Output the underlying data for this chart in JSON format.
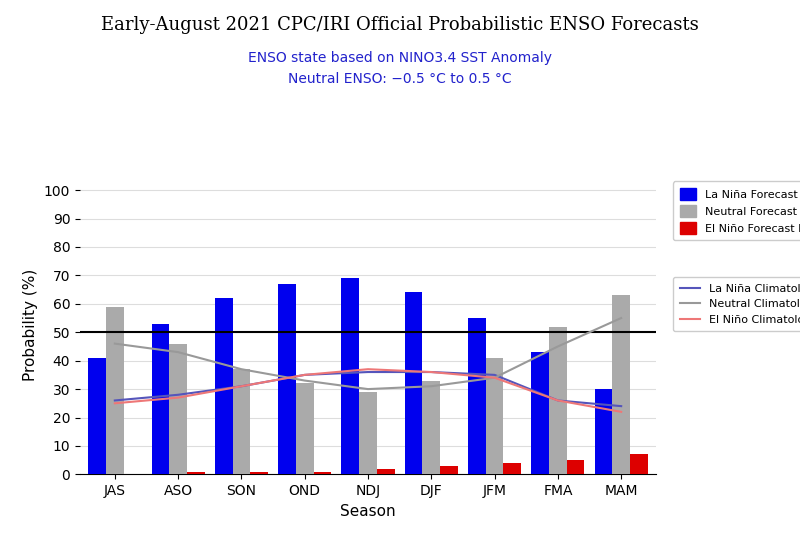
{
  "title": "Early-August 2021 CPC/IRI Official Probabilistic ENSO Forecasts",
  "subtitle1": "ENSO state based on NINO3.4 SST Anomaly",
  "subtitle2": "Neutral ENSO: −0.5 °C to 0.5 °C",
  "xlabel": "Season",
  "ylabel": "Probability (%)",
  "seasons": [
    "JAS",
    "ASO",
    "SON",
    "OND",
    "NDJ",
    "DJF",
    "JFM",
    "FMA",
    "MAM"
  ],
  "lanina_bars": [
    41,
    53,
    62,
    67,
    69,
    64,
    55,
    43,
    30
  ],
  "neutral_bars": [
    59,
    46,
    37,
    32,
    29,
    33,
    41,
    52,
    63
  ],
  "elnino_bars": [
    0,
    1,
    1,
    1,
    2,
    3,
    4,
    5,
    7
  ],
  "lanina_clim": [
    26,
    28,
    31,
    35,
    36,
    36,
    35,
    26,
    24
  ],
  "neutral_clim": [
    46,
    43,
    37,
    33,
    30,
    31,
    34,
    45,
    55
  ],
  "elnino_clim": [
    25,
    27,
    31,
    35,
    37,
    36,
    34,
    26,
    22
  ],
  "bar_width": 0.28,
  "ylim": [
    0,
    105
  ],
  "yticks": [
    0,
    10,
    20,
    30,
    40,
    50,
    60,
    70,
    80,
    90,
    100
  ],
  "hline_y": 50,
  "lanina_bar_color": "#0000EE",
  "neutral_bar_color": "#AAAAAA",
  "elnino_bar_color": "#DD0000",
  "lanina_clim_color": "#5555BB",
  "neutral_clim_color": "#999999",
  "elnino_clim_color": "#EE7777",
  "subtitle_color": "#2222CC",
  "background_color": "#FFFFFF",
  "title_fontsize": 13,
  "subtitle_fontsize": 10,
  "tick_fontsize": 10,
  "axis_label_fontsize": 11,
  "legend_fontsize": 8
}
